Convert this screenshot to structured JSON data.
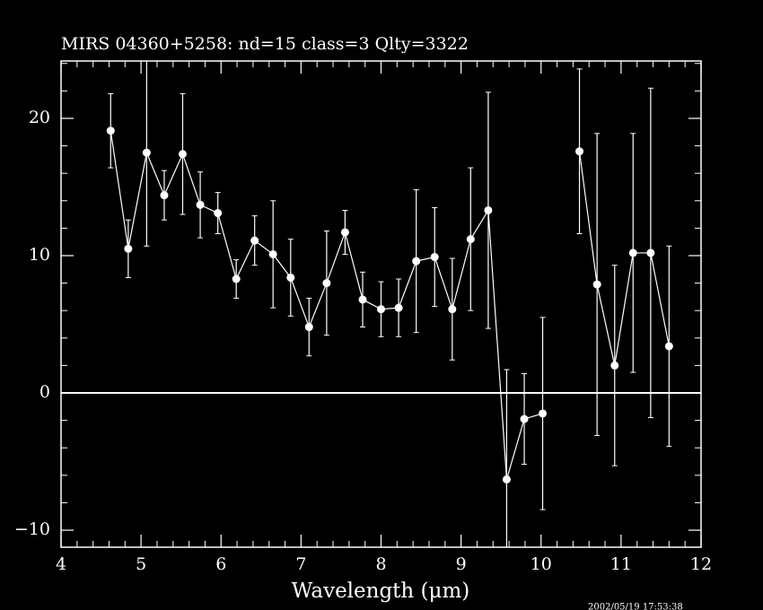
{
  "chart_data": {
    "type": "scatter",
    "title": "MIRS 04360+5258:    nd=15    class=3    Qlty=3322",
    "x_label": "Wavelength (μm)",
    "timestamp": "2002/05/19 17:53:38",
    "color": "#ffffff",
    "reference_line": 0,
    "xlim": [
      4,
      12
    ],
    "ylim": [
      -11.24,
      24.18
    ],
    "xticks": [
      4,
      5,
      6,
      7,
      8,
      9,
      10,
      11,
      12
    ],
    "yticks": [
      {
        "value": -10,
        "label": "−10"
      },
      0,
      10,
      20
    ],
    "series": [
      {
        "color": "#ffffff",
        "x": [
          4.62,
          4.84,
          5.07,
          5.29,
          5.52,
          5.74,
          5.96,
          6.19,
          6.42,
          6.65,
          6.87,
          7.1,
          7.32,
          7.55,
          7.77,
          8.0,
          8.22,
          8.44,
          8.67,
          8.89,
          9.12,
          9.34,
          9.57,
          9.79,
          10.02
        ],
        "values": [
          19.1,
          10.5,
          17.5,
          14.4,
          17.4,
          13.7,
          13.1,
          8.3,
          11.1,
          10.1,
          8.4,
          4.8,
          8.0,
          11.7,
          6.8,
          6.1,
          6.2,
          9.6,
          9.9,
          6.1,
          11.2,
          13.3,
          -6.3,
          -1.9,
          -1.5
        ],
        "errors": [
          2.7,
          2.1,
          6.8,
          1.8,
          4.4,
          2.4,
          1.5,
          1.4,
          1.8,
          3.9,
          2.8,
          2.1,
          3.8,
          1.6,
          2.0,
          2.0,
          2.1,
          5.2,
          3.6,
          3.7,
          5.2,
          8.6,
          8.0,
          3.3,
          7.0
        ]
      },
      {
        "color": "#ffffff",
        "x": [
          10.48,
          10.7,
          10.92,
          11.15,
          11.37,
          11.6
        ],
        "values": [
          17.6,
          7.9,
          2.0,
          10.2,
          10.2,
          3.4
        ],
        "errors": [
          6.0,
          11.0,
          7.3,
          8.7,
          12.0,
          7.3
        ]
      }
    ]
  }
}
